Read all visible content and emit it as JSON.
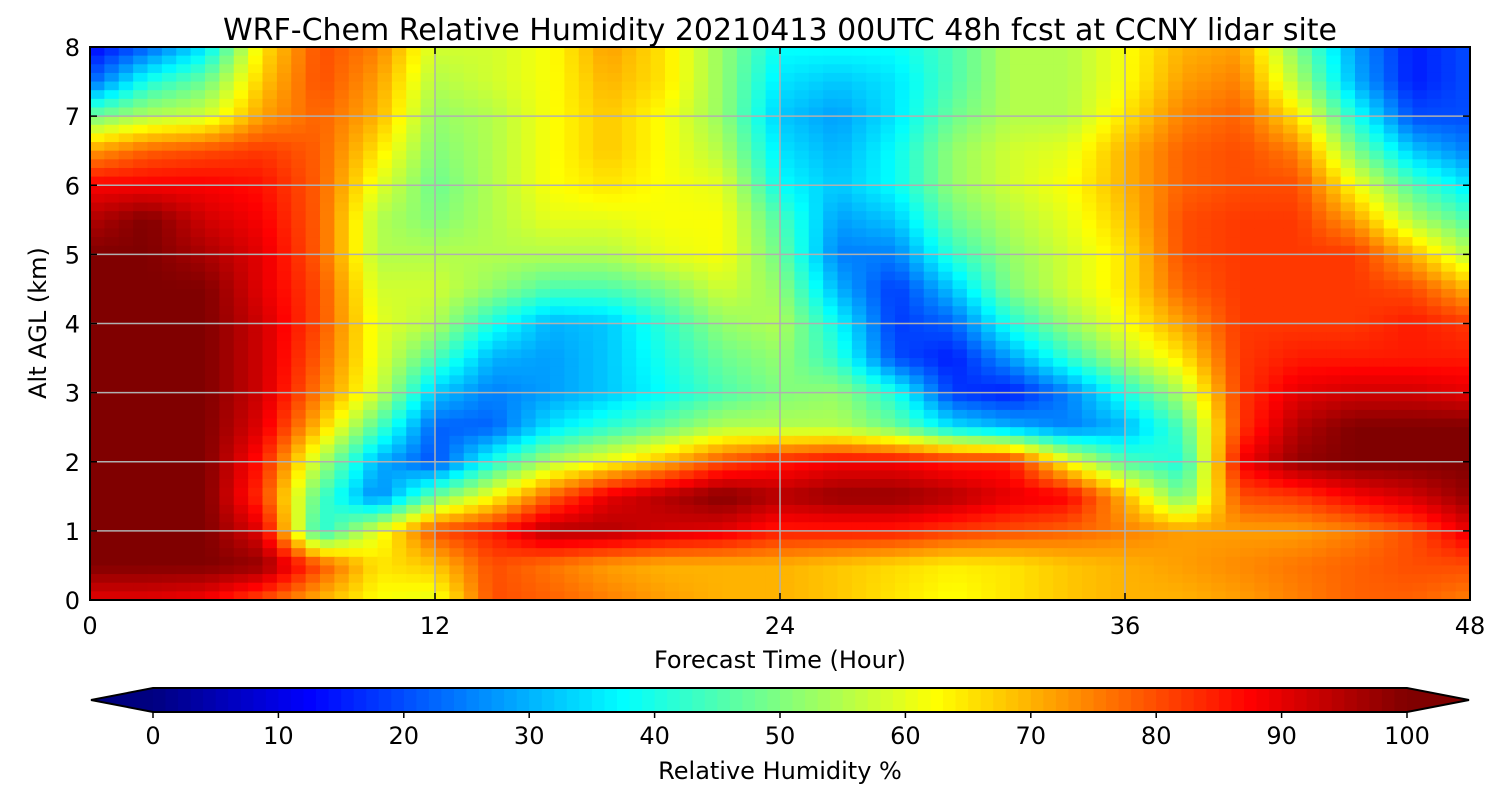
{
  "chart_data": {
    "type": "heatmap",
    "title": "WRF-Chem Relative Humidity 20210413 00UTC 48h fcst at CCNY lidar site",
    "xlabel": "Forecast Time (Hour)",
    "ylabel": "Alt AGL (km)",
    "xlim": [
      0,
      48
    ],
    "ylim": [
      0,
      8
    ],
    "x_ticks": [
      0,
      12,
      24,
      36,
      48
    ],
    "y_ticks": [
      0,
      1,
      2,
      3,
      4,
      5,
      6,
      7,
      8
    ],
    "grid": true,
    "colormap": "jet",
    "colorbar": {
      "label": "Relative Humidity %",
      "min": 0,
      "max": 100,
      "ticks": [
        0,
        10,
        20,
        30,
        40,
        50,
        60,
        70,
        80,
        90,
        100
      ],
      "extend": "both",
      "placement": "bottom"
    },
    "x": [
      0,
      2,
      4,
      6,
      8,
      10,
      12,
      14,
      16,
      18,
      20,
      22,
      24,
      26,
      28,
      30,
      32,
      34,
      36,
      38,
      40,
      42,
      44,
      46,
      48
    ],
    "y": [
      0,
      0.5,
      1,
      1.5,
      2,
      2.5,
      3,
      3.5,
      4,
      4.5,
      5,
      5.5,
      6,
      6.5,
      7,
      7.5,
      8
    ],
    "z": [
      [
        90,
        90,
        88,
        80,
        70,
        62,
        60,
        80,
        78,
        75,
        72,
        70,
        70,
        68,
        65,
        62,
        65,
        68,
        70,
        70,
        72,
        75,
        78,
        78,
        75
      ],
      [
        100,
        100,
        100,
        98,
        80,
        65,
        68,
        80,
        76,
        72,
        70,
        70,
        70,
        68,
        66,
        64,
        65,
        68,
        70,
        72,
        74,
        76,
        78,
        80,
        80
      ],
      [
        100,
        100,
        100,
        90,
        40,
        60,
        80,
        85,
        95,
        95,
        92,
        90,
        85,
        85,
        85,
        82,
        80,
        78,
        75,
        72,
        72,
        72,
        75,
        80,
        90
      ],
      [
        100,
        100,
        100,
        82,
        45,
        25,
        48,
        62,
        78,
        90,
        95,
        100,
        95,
        98,
        98,
        95,
        90,
        88,
        70,
        48,
        80,
        82,
        88,
        92,
        98
      ],
      [
        100,
        100,
        100,
        85,
        55,
        30,
        20,
        40,
        55,
        62,
        70,
        80,
        85,
        88,
        88,
        85,
        85,
        62,
        45,
        40,
        88,
        98,
        100,
        100,
        100
      ],
      [
        100,
        100,
        100,
        90,
        68,
        45,
        22,
        22,
        35,
        42,
        48,
        55,
        55,
        55,
        48,
        35,
        30,
        25,
        30,
        45,
        82,
        95,
        100,
        100,
        100
      ],
      [
        100,
        100,
        100,
        92,
        75,
        58,
        32,
        25,
        28,
        32,
        38,
        45,
        50,
        52,
        40,
        18,
        15,
        25,
        40,
        55,
        82,
        90,
        92,
        92,
        90
      ],
      [
        100,
        100,
        100,
        92,
        78,
        60,
        45,
        30,
        28,
        32,
        40,
        48,
        52,
        42,
        20,
        15,
        28,
        42,
        55,
        65,
        82,
        85,
        85,
        85,
        85
      ],
      [
        100,
        100,
        100,
        92,
        80,
        60,
        55,
        40,
        30,
        32,
        42,
        52,
        55,
        38,
        18,
        22,
        40,
        52,
        62,
        72,
        82,
        82,
        82,
        85,
        82
      ],
      [
        100,
        100,
        100,
        90,
        80,
        58,
        58,
        52,
        45,
        45,
        50,
        58,
        52,
        30,
        18,
        32,
        50,
        58,
        65,
        78,
        82,
        82,
        82,
        80,
        70
      ],
      [
        100,
        100,
        96,
        90,
        78,
        55,
        55,
        55,
        55,
        55,
        60,
        62,
        48,
        25,
        25,
        42,
        52,
        58,
        65,
        80,
        82,
        82,
        82,
        70,
        55
      ],
      [
        95,
        100,
        92,
        88,
        78,
        55,
        50,
        55,
        60,
        60,
        62,
        62,
        45,
        28,
        32,
        48,
        55,
        60,
        68,
        80,
        82,
        82,
        72,
        55,
        45
      ],
      [
        88,
        88,
        88,
        86,
        78,
        60,
        48,
        55,
        62,
        65,
        62,
        60,
        38,
        32,
        38,
        52,
        58,
        62,
        70,
        78,
        80,
        80,
        62,
        45,
        35
      ],
      [
        72,
        78,
        80,
        82,
        78,
        65,
        50,
        55,
        62,
        68,
        62,
        55,
        35,
        30,
        38,
        52,
        58,
        60,
        70,
        78,
        80,
        75,
        50,
        32,
        25
      ],
      [
        48,
        55,
        58,
        72,
        78,
        70,
        52,
        55,
        62,
        68,
        62,
        52,
        32,
        28,
        35,
        48,
        55,
        55,
        65,
        75,
        78,
        65,
        40,
        20,
        20
      ],
      [
        22,
        40,
        48,
        68,
        80,
        72,
        55,
        58,
        62,
        70,
        65,
        52,
        35,
        32,
        35,
        45,
        55,
        55,
        62,
        72,
        75,
        55,
        30,
        15,
        20
      ],
      [
        12,
        22,
        35,
        65,
        80,
        75,
        58,
        58,
        62,
        72,
        65,
        52,
        38,
        38,
        38,
        45,
        55,
        55,
        62,
        70,
        72,
        50,
        28,
        15,
        20
      ]
    ]
  }
}
